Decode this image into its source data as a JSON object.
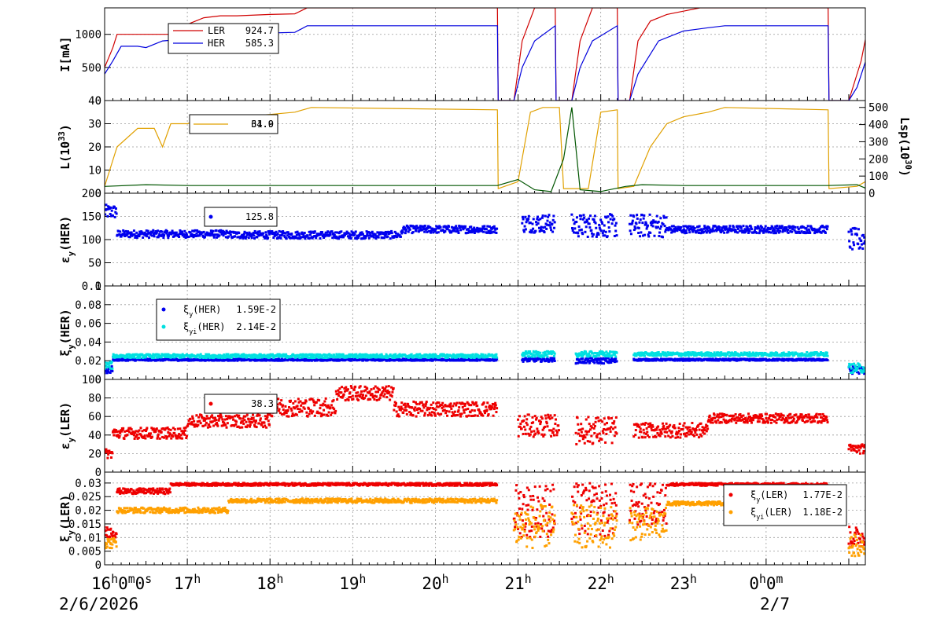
{
  "chart_data": [
    {
      "id": "current",
      "type": "line",
      "ylabel": "I[mA]",
      "ylim": [
        0,
        1400
      ],
      "yticks": [
        0,
        500,
        1000
      ],
      "grid": true,
      "legend": "top-left",
      "series": [
        {
          "name": "LER",
          "color": "#d00000",
          "legend_value": "924.7",
          "points": [
            [
              16.0,
              500
            ],
            [
              16.1,
              800
            ],
            [
              16.15,
              1000
            ],
            [
              16.4,
              1000
            ],
            [
              16.5,
              1000
            ],
            [
              16.6,
              1000
            ],
            [
              16.8,
              1000
            ],
            [
              17.0,
              1150
            ],
            [
              17.2,
              1250
            ],
            [
              17.4,
              1280
            ],
            [
              17.6,
              1280
            ],
            [
              18.0,
              1300
            ],
            [
              18.3,
              1310
            ],
            [
              18.45,
              1400
            ],
            [
              20.75,
              1400
            ],
            [
              20.76,
              0
            ],
            [
              20.95,
              0
            ],
            [
              21.05,
              900
            ],
            [
              21.2,
              1400
            ],
            [
              21.45,
              1400
            ],
            [
              21.46,
              0
            ],
            [
              21.65,
              0
            ],
            [
              21.75,
              900
            ],
            [
              21.9,
              1400
            ],
            [
              22.2,
              1400
            ],
            [
              22.21,
              0
            ],
            [
              22.35,
              0
            ],
            [
              22.45,
              900
            ],
            [
              22.6,
              1200
            ],
            [
              22.8,
              1300
            ],
            [
              23.0,
              1350
            ],
            [
              23.2,
              1400
            ],
            [
              24.75,
              1400
            ],
            [
              24.76,
              0
            ],
            [
              25.0,
              0
            ],
            [
              25.15,
              600
            ],
            [
              25.2,
              920
            ]
          ]
        },
        {
          "name": "HER",
          "color": "#0000dd",
          "legend_value": "585.3",
          "points": [
            [
              16.0,
              400
            ],
            [
              16.1,
              600
            ],
            [
              16.2,
              820
            ],
            [
              16.4,
              820
            ],
            [
              16.5,
              800
            ],
            [
              16.7,
              900
            ],
            [
              17.0,
              930
            ],
            [
              17.3,
              980
            ],
            [
              17.6,
              1000
            ],
            [
              18.0,
              1020
            ],
            [
              18.3,
              1030
            ],
            [
              18.45,
              1130
            ],
            [
              20.75,
              1130
            ],
            [
              20.76,
              0
            ],
            [
              20.95,
              0
            ],
            [
              21.05,
              500
            ],
            [
              21.2,
              900
            ],
            [
              21.45,
              1130
            ],
            [
              21.46,
              0
            ],
            [
              21.65,
              0
            ],
            [
              21.75,
              500
            ],
            [
              21.9,
              900
            ],
            [
              22.2,
              1130
            ],
            [
              22.21,
              0
            ],
            [
              22.35,
              0
            ],
            [
              22.45,
              400
            ],
            [
              22.7,
              900
            ],
            [
              23.0,
              1050
            ],
            [
              23.3,
              1100
            ],
            [
              23.5,
              1130
            ],
            [
              24.75,
              1130
            ],
            [
              24.76,
              0
            ],
            [
              25.0,
              0
            ],
            [
              25.1,
              200
            ],
            [
              25.2,
              580
            ]
          ]
        }
      ]
    },
    {
      "id": "luminosity",
      "type": "line",
      "ylabel": "L(10",
      "ylabel_sup": "33",
      "ylabel_close": ")",
      "ylim": [
        0,
        40
      ],
      "yticks": [
        0,
        10,
        20,
        30,
        40
      ],
      "y2label": "Lsp(10",
      "y2label_sup": "30",
      "y2label_close": ")",
      "y2lim": [
        0,
        540
      ],
      "y2ticks": [
        0,
        100,
        200,
        300,
        400,
        500
      ],
      "legend": "top-left",
      "legend_text_1": "61.9",
      "legend_text_2": "34.0",
      "series": [
        {
          "name": "L",
          "color": "#e0a000",
          "points": [
            [
              16.0,
              3
            ],
            [
              16.15,
              20
            ],
            [
              16.4,
              28
            ],
            [
              16.6,
              28
            ],
            [
              16.7,
              20
            ],
            [
              16.8,
              30
            ],
            [
              17.0,
              30
            ],
            [
              17.3,
              33
            ],
            [
              17.6,
              33
            ],
            [
              18.0,
              34
            ],
            [
              18.3,
              35
            ],
            [
              18.5,
              37
            ],
            [
              20.75,
              36
            ],
            [
              20.76,
              2
            ],
            [
              21.0,
              5
            ],
            [
              21.15,
              35
            ],
            [
              21.3,
              37
            ],
            [
              21.5,
              37
            ],
            [
              21.55,
              2
            ],
            [
              21.85,
              2
            ],
            [
              22.0,
              35
            ],
            [
              22.2,
              36
            ],
            [
              22.21,
              2
            ],
            [
              22.4,
              3
            ],
            [
              22.6,
              20
            ],
            [
              22.8,
              30
            ],
            [
              23.0,
              33
            ],
            [
              23.3,
              35
            ],
            [
              23.5,
              37
            ],
            [
              24.75,
              36
            ],
            [
              24.76,
              2
            ],
            [
              25.1,
              3
            ],
            [
              25.2,
              5
            ]
          ]
        },
        {
          "name": "Lsp",
          "color": "#005500",
          "axis": "y2",
          "points": [
            [
              16.0,
              40
            ],
            [
              16.5,
              50
            ],
            [
              17.0,
              45
            ],
            [
              18.0,
              45
            ],
            [
              19.0,
              45
            ],
            [
              20.0,
              45
            ],
            [
              20.75,
              45
            ],
            [
              21.0,
              80
            ],
            [
              21.2,
              20
            ],
            [
              21.4,
              10
            ],
            [
              21.55,
              200
            ],
            [
              21.65,
              500
            ],
            [
              21.75,
              20
            ],
            [
              22.0,
              10
            ],
            [
              22.3,
              40
            ],
            [
              22.5,
              50
            ],
            [
              23.0,
              45
            ],
            [
              24.0,
              45
            ],
            [
              24.75,
              45
            ],
            [
              25.1,
              50
            ],
            [
              25.2,
              30
            ]
          ]
        }
      ]
    },
    {
      "id": "epsy_her",
      "type": "scatter",
      "ylabel": "ε",
      "ylabel_sub": "y",
      "ylabel_rest": "(HER)",
      "ylim": [
        0,
        200
      ],
      "yticks": [
        0,
        50,
        100,
        150,
        200
      ],
      "legend": "top-left",
      "series": [
        {
          "name": "",
          "color": "#0000ee",
          "legend_value": "125.8",
          "segments": [
            [
              16.0,
              16.15,
              160,
              15
            ],
            [
              16.15,
              17.5,
              112,
              8
            ],
            [
              17.5,
              19.4,
              110,
              8
            ],
            [
              19.4,
              19.6,
              110,
              8
            ],
            [
              19.6,
              20.75,
              122,
              8
            ],
            [
              21.05,
              21.45,
              135,
              20
            ],
            [
              21.65,
              22.2,
              130,
              25
            ],
            [
              22.35,
              22.8,
              130,
              25
            ],
            [
              22.8,
              24.75,
              122,
              8
            ],
            [
              25.0,
              25.2,
              100,
              25
            ]
          ]
        }
      ]
    },
    {
      "id": "xi_her",
      "type": "scatter",
      "ylabel": "ξ",
      "ylabel_sub": "y",
      "ylabel_rest": "(HER)",
      "ylim": [
        0,
        0.1
      ],
      "yticks": [
        0,
        0.02,
        0.04,
        0.06,
        0.08,
        0.1
      ],
      "legend": "top-left",
      "series": [
        {
          "name": "ξ",
          "name_sub": "y",
          "name_rest": "(HER)",
          "color": "#0000ee",
          "legend_value": "1.59E-2",
          "segments": [
            [
              16.0,
              16.1,
              0.01,
              0.004
            ],
            [
              16.1,
              20.75,
              0.021,
              0.001
            ],
            [
              21.05,
              21.45,
              0.021,
              0.002
            ],
            [
              21.7,
              22.2,
              0.02,
              0.003
            ],
            [
              22.4,
              24.75,
              0.021,
              0.001
            ],
            [
              25.0,
              25.2,
              0.01,
              0.004
            ]
          ]
        },
        {
          "name": "ξ",
          "name_sub": "yi",
          "name_rest": "(HER)",
          "color": "#00e0e0",
          "legend_value": "2.14E-2",
          "segments": [
            [
              16.0,
              16.1,
              0.015,
              0.004
            ],
            [
              16.1,
              20.75,
              0.025,
              0.002
            ],
            [
              21.05,
              21.45,
              0.027,
              0.003
            ],
            [
              21.7,
              22.2,
              0.027,
              0.003
            ],
            [
              22.4,
              24.75,
              0.027,
              0.002
            ],
            [
              25.0,
              25.2,
              0.012,
              0.005
            ]
          ]
        }
      ]
    },
    {
      "id": "epsy_ler",
      "type": "scatter",
      "ylabel": "ε",
      "ylabel_sub": "y",
      "ylabel_rest": "(LER)",
      "ylim": [
        0,
        100
      ],
      "yticks": [
        0,
        20,
        40,
        60,
        80,
        100
      ],
      "legend": "top-left",
      "series": [
        {
          "name": "",
          "color": "#ee0000",
          "legend_value": "38.3",
          "segments": [
            [
              16.0,
              16.1,
              20,
              5
            ],
            [
              16.1,
              17.0,
              42,
              6
            ],
            [
              17.0,
              18.0,
              55,
              7
            ],
            [
              18.0,
              18.8,
              70,
              10
            ],
            [
              18.8,
              19.5,
              85,
              8
            ],
            [
              19.5,
              20.75,
              68,
              8
            ],
            [
              21.0,
              21.5,
              50,
              12
            ],
            [
              21.7,
              22.2,
              45,
              15
            ],
            [
              22.4,
              23.3,
              45,
              8
            ],
            [
              23.3,
              24.75,
              58,
              5
            ],
            [
              25.0,
              25.2,
              25,
              5
            ]
          ]
        }
      ]
    },
    {
      "id": "xi_ler",
      "type": "scatter",
      "ylabel": "ξ",
      "ylabel_sub": "y",
      "ylabel_rest": "(LER)",
      "ylim": [
        0,
        0.034
      ],
      "yticks": [
        0,
        0.005,
        0.01,
        0.015,
        0.02,
        0.025,
        0.03
      ],
      "ytick_labels": [
        "0",
        "0.005",
        "0.01",
        "0.015",
        "0.02",
        "0.025",
        "0.03"
      ],
      "legend": "top-right",
      "series": [
        {
          "name": "ξ",
          "name_sub": "y",
          "name_rest": "(LER)",
          "color": "#ee0000",
          "legend_value": "1.77E-2",
          "segments": [
            [
              16.0,
              16.15,
              0.012,
              0.002
            ],
            [
              16.15,
              16.8,
              0.027,
              0.001
            ],
            [
              16.8,
              20.75,
              0.0295,
              0.0005
            ],
            [
              20.95,
              21.45,
              0.02,
              0.01
            ],
            [
              21.65,
              22.2,
              0.02,
              0.01
            ],
            [
              22.35,
              22.8,
              0.022,
              0.008
            ],
            [
              22.8,
              24.75,
              0.0295,
              0.0005
            ],
            [
              25.0,
              25.2,
              0.01,
              0.004
            ]
          ]
        },
        {
          "name": "ξ",
          "name_sub": "yi",
          "name_rest": "(LER)",
          "color": "#ffa000",
          "legend_value": "1.18E-2",
          "segments": [
            [
              16.0,
              16.15,
              0.008,
              0.002
            ],
            [
              16.15,
              17.5,
              0.02,
              0.001
            ],
            [
              17.5,
              20.75,
              0.0235,
              0.0008
            ],
            [
              20.95,
              21.45,
              0.014,
              0.008
            ],
            [
              21.65,
              22.2,
              0.014,
              0.008
            ],
            [
              22.35,
              22.8,
              0.015,
              0.006
            ],
            [
              22.8,
              24.75,
              0.0225,
              0.0007
            ],
            [
              25.0,
              25.2,
              0.007,
              0.004
            ]
          ]
        }
      ]
    }
  ],
  "x_axis": {
    "xlim": [
      16.0,
      25.2
    ],
    "ticks": [
      {
        "x": 16.0,
        "text": "16",
        "sup": "h",
        "rest": "0",
        "sup2": "m",
        "rest2": "0",
        "sup3": "s"
      },
      {
        "x": 17.0,
        "text": "17",
        "sup": "h"
      },
      {
        "x": 18.0,
        "text": "18",
        "sup": "h"
      },
      {
        "x": 19.0,
        "text": "19",
        "sup": "h"
      },
      {
        "x": 20.0,
        "text": "20",
        "sup": "h"
      },
      {
        "x": 21.0,
        "text": "21",
        "sup": "h"
      },
      {
        "x": 22.0,
        "text": "22",
        "sup": "h"
      },
      {
        "x": 23.0,
        "text": "23",
        "sup": "h"
      },
      {
        "x": 24.0,
        "text": "0",
        "sup": "h",
        "rest": "0",
        "sup2": "m"
      }
    ],
    "date_left": "2/6/2026",
    "date_right": "2/7"
  },
  "legend_labels": {
    "ler": "LER",
    "her": "HER"
  }
}
